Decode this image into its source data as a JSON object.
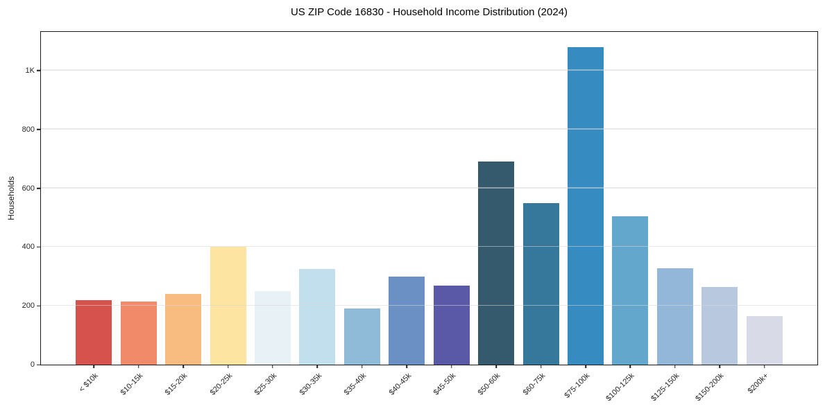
{
  "chart": {
    "title": "US ZIP Code 16830 - Household Income Distribution (2024)",
    "ylabel": "Households"
  },
  "chart_data": {
    "type": "bar",
    "title": "US ZIP Code 16830 - Household Income Distribution (2024)",
    "xlabel": "",
    "ylabel": "Households",
    "categories": [
      "< $10k",
      "$10-15k",
      "$15-20k",
      "$20-25k",
      "$25-30k",
      "$30-35k",
      "$35-40k",
      "$40-45k",
      "$45-50k",
      "$50-60k",
      "$60-75k",
      "$75-100k",
      "$100-125k",
      "$125-150k",
      "$150-200k",
      "$200k+"
    ],
    "values": [
      220,
      215,
      240,
      400,
      250,
      325,
      190,
      300,
      270,
      690,
      550,
      1080,
      505,
      328,
      265,
      165
    ],
    "bar_colors": [
      "#d6534d",
      "#f08a68",
      "#f9bc80",
      "#fde4a1",
      "#e8f1f6",
      "#c1dfec",
      "#8fbbd9",
      "#6b90c3",
      "#5a59a8",
      "#365a6d",
      "#35789c",
      "#368cc0",
      "#63a8cc",
      "#93b7d8",
      "#b8c8de",
      "#d8dae8"
    ],
    "ylim": [
      0,
      1132
    ],
    "yticks": [
      {
        "value": 0,
        "label": "0"
      },
      {
        "value": 200,
        "label": "200"
      },
      {
        "value": 400,
        "label": "400"
      },
      {
        "value": 600,
        "label": "600"
      },
      {
        "value": 800,
        "label": "800"
      },
      {
        "value": 1000,
        "label": "1K"
      }
    ],
    "grid": "horizontal, drawn above bars",
    "grid_color": "#e6e6e6",
    "legend": "none",
    "colors": {
      "spine": "#1a1a1a",
      "tick_label": "#262626",
      "title": "#000000",
      "background": "#ffffff"
    }
  }
}
